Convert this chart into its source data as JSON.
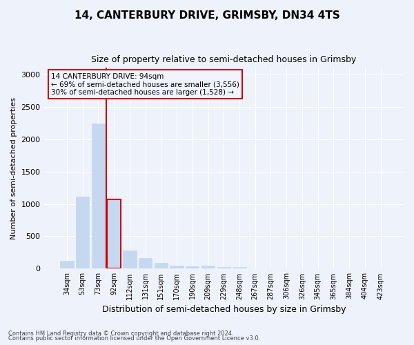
{
  "title": "14, CANTERBURY DRIVE, GRIMSBY, DN34 4TS",
  "subtitle": "Size of property relative to semi-detached houses in Grimsby",
  "xlabel": "Distribution of semi-detached houses by size in Grimsby",
  "ylabel": "Number of semi-detached properties",
  "categories": [
    "34sqm",
    "53sqm",
    "73sqm",
    "92sqm",
    "112sqm",
    "131sqm",
    "151sqm",
    "170sqm",
    "190sqm",
    "209sqm",
    "229sqm",
    "248sqm",
    "267sqm",
    "287sqm",
    "306sqm",
    "326sqm",
    "345sqm",
    "365sqm",
    "384sqm",
    "404sqm",
    "423sqm"
  ],
  "values": [
    120,
    1110,
    2240,
    1070,
    285,
    160,
    90,
    50,
    40,
    45,
    30,
    25,
    0,
    0,
    0,
    0,
    0,
    0,
    0,
    0,
    0
  ],
  "bar_color": "#c5d8f0",
  "bar_edge_color": "#c5d8f0",
  "highlight_bar_color": "#c5d8f0",
  "highlight_bar_edge_color": "#cc0000",
  "highlight_bar_index": 3,
  "vline_x_index": 3,
  "vline_color": "#cc0000",
  "annotation_box_text": "14 CANTERBURY DRIVE: 94sqm\n← 69% of semi-detached houses are smaller (3,556)\n30% of semi-detached houses are larger (1,528) →",
  "annotation_box_color": "#cc0000",
  "annotation_box_facecolor": "#f0f4ff",
  "ylim": [
    0,
    3100
  ],
  "yticks": [
    0,
    500,
    1000,
    1500,
    2000,
    2500,
    3000
  ],
  "background_color": "#eef2fa",
  "grid_color": "#ffffff",
  "footer_line1": "Contains HM Land Registry data © Crown copyright and database right 2024.",
  "footer_line2": "Contains public sector information licensed under the Open Government Licence v3.0."
}
